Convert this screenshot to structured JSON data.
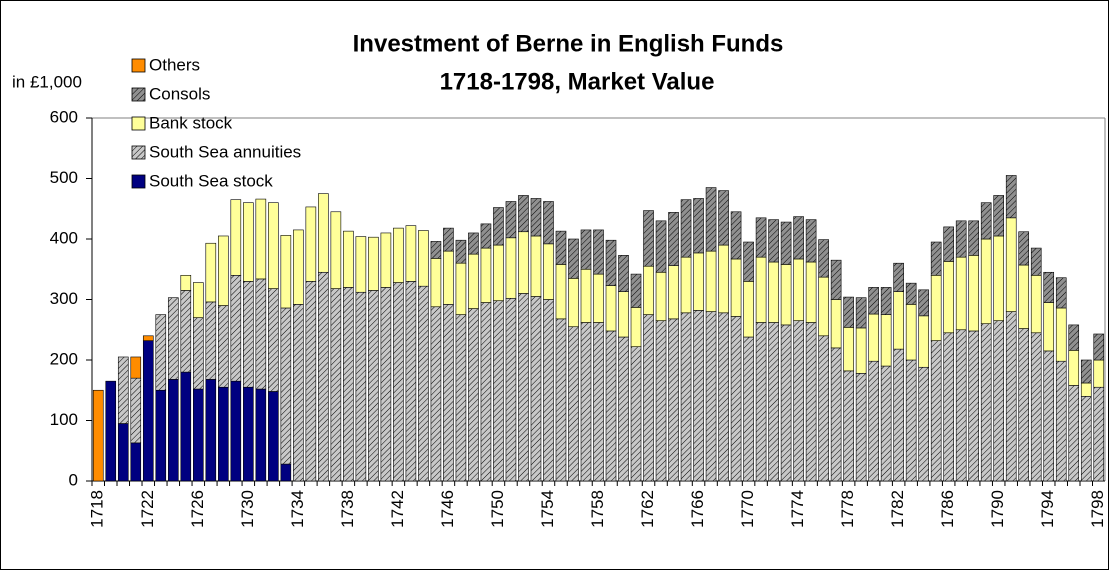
{
  "chart_data": {
    "type": "stacked-bar",
    "title": "Investment of Berne in English Funds",
    "subtitle": "1718-1798, Market Value",
    "y_label": "in £1,000",
    "categories": [
      "1718",
      null,
      null,
      null,
      "1722",
      null,
      null,
      null,
      "1726",
      null,
      null,
      null,
      "1730",
      null,
      null,
      null,
      "1734",
      null,
      null,
      null,
      "1738",
      null,
      null,
      null,
      "1742",
      null,
      null,
      null,
      "1746",
      null,
      null,
      null,
      "1750",
      null,
      null,
      null,
      "1754",
      null,
      null,
      null,
      "1758",
      null,
      null,
      null,
      "1762",
      null,
      null,
      null,
      "1766",
      null,
      null,
      null,
      "1770",
      null,
      null,
      null,
      "1774",
      null,
      null,
      null,
      "1778",
      null,
      null,
      null,
      "1782",
      null,
      null,
      null,
      "1786",
      null,
      null,
      null,
      "1790",
      null,
      null,
      null,
      "1794",
      null,
      null,
      null,
      "1798"
    ],
    "series": [
      {
        "name": "South Sea stock",
        "color": "#000080",
        "values": [
          0,
          165,
          95,
          63,
          232,
          150,
          168,
          180,
          152,
          168,
          155,
          165,
          155,
          152,
          148,
          28,
          0,
          0,
          0,
          0,
          0,
          0,
          0,
          0,
          0,
          0,
          0,
          0,
          0,
          0,
          0,
          0,
          0,
          0,
          0,
          0,
          0,
          0,
          0,
          0,
          0,
          0,
          0,
          0,
          0,
          0,
          0,
          0,
          0,
          0,
          0,
          0,
          0,
          0,
          0,
          0,
          0,
          0,
          0,
          0,
          0,
          0,
          0,
          0,
          0,
          0,
          0,
          0,
          0,
          0,
          0,
          0,
          0,
          0,
          0,
          0,
          0,
          0,
          0,
          0,
          0
        ]
      },
      {
        "name": "South Sea annuities",
        "color": "#c8c8c8",
        "values": [
          0,
          0,
          110,
          107,
          0,
          125,
          135,
          135,
          118,
          128,
          135,
          175,
          175,
          182,
          170,
          258,
          292,
          330,
          345,
          318,
          320,
          312,
          315,
          320,
          328,
          330,
          322,
          288,
          292,
          275,
          285,
          295,
          298,
          302,
          310,
          305,
          300,
          268,
          255,
          262,
          262,
          248,
          238,
          222,
          275,
          265,
          268,
          278,
          282,
          280,
          278,
          272,
          238,
          262,
          262,
          258,
          265,
          262,
          240,
          220,
          182,
          178,
          198,
          190,
          218,
          200,
          188,
          232,
          245,
          250,
          248,
          260,
          265,
          280,
          252,
          245,
          215,
          198,
          158,
          140,
          155
        ]
      },
      {
        "name": "Bank stock",
        "color": "#ffff99",
        "values": [
          0,
          0,
          0,
          0,
          0,
          0,
          0,
          25,
          58,
          97,
          115,
          125,
          130,
          132,
          142,
          120,
          123,
          123,
          130,
          127,
          93,
          92,
          88,
          90,
          90,
          92,
          92,
          80,
          88,
          85,
          90,
          90,
          92,
          100,
          102,
          100,
          92,
          90,
          80,
          88,
          80,
          75,
          75,
          65,
          80,
          80,
          88,
          92,
          95,
          100,
          112,
          95,
          92,
          108,
          100,
          100,
          102,
          100,
          97,
          80,
          72,
          75,
          78,
          85,
          95,
          92,
          85,
          108,
          118,
          120,
          125,
          140,
          140,
          155,
          105,
          95,
          80,
          88,
          58,
          22,
          45
        ]
      },
      {
        "name": "Consols",
        "color": "#909090",
        "values": [
          0,
          0,
          0,
          0,
          0,
          0,
          0,
          0,
          0,
          0,
          0,
          0,
          0,
          0,
          0,
          0,
          0,
          0,
          0,
          0,
          0,
          0,
          0,
          0,
          0,
          0,
          0,
          28,
          38,
          38,
          35,
          40,
          62,
          60,
          60,
          62,
          70,
          55,
          65,
          65,
          73,
          75,
          60,
          55,
          92,
          85,
          88,
          95,
          90,
          105,
          90,
          78,
          65,
          65,
          70,
          70,
          70,
          70,
          62,
          65,
          50,
          50,
          44,
          45,
          47,
          35,
          43,
          55,
          57,
          60,
          57,
          60,
          67,
          70,
          55,
          45,
          50,
          50,
          42,
          38,
          43
        ]
      },
      {
        "name": "Others",
        "color": "#ff8c00",
        "values": [
          150,
          0,
          0,
          35,
          8,
          0,
          0,
          0,
          0,
          0,
          0,
          0,
          0,
          0,
          0,
          0,
          0,
          0,
          0,
          0,
          0,
          0,
          0,
          0,
          0,
          0,
          0,
          0,
          0,
          0,
          0,
          0,
          0,
          0,
          0,
          0,
          0,
          0,
          0,
          0,
          0,
          0,
          0,
          0,
          0,
          0,
          0,
          0,
          0,
          0,
          0,
          0,
          0,
          0,
          0,
          0,
          0,
          0,
          0,
          0,
          0,
          0,
          0,
          0,
          0,
          0,
          0,
          0,
          0,
          0,
          0,
          0,
          0,
          0,
          0,
          0,
          0,
          0,
          0,
          0,
          0
        ]
      }
    ],
    "ylim": [
      0,
      600
    ],
    "yticks": [
      0,
      100,
      200,
      300,
      400,
      500,
      600
    ],
    "grid": false,
    "legend": "upper left"
  }
}
